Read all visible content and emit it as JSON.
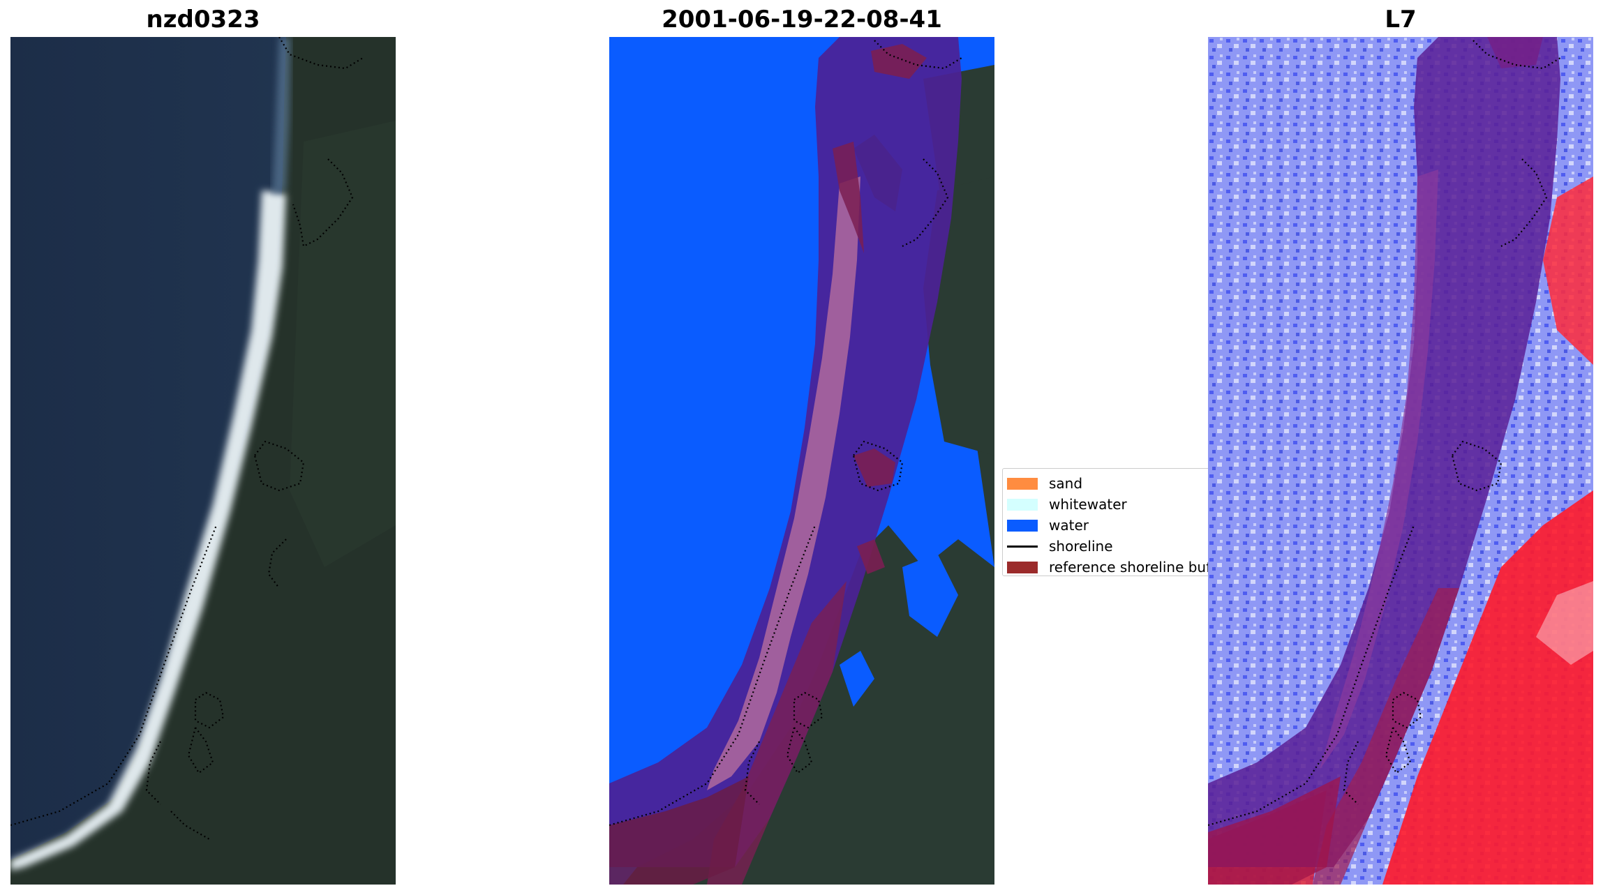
{
  "panels": [
    {
      "title": "nzd0323"
    },
    {
      "title": "2001-06-19-22-08-41"
    },
    {
      "title": "L7"
    }
  ],
  "legend": {
    "items": [
      {
        "label": "sand",
        "color": "#ff8c40",
        "kind": "patch"
      },
      {
        "label": "whitewater",
        "color": "#d4ffff",
        "kind": "patch"
      },
      {
        "label": "water",
        "color": "#0a5cff",
        "kind": "patch"
      },
      {
        "label": "shoreline",
        "color": "#000000",
        "kind": "line"
      },
      {
        "label": "reference shoreline buffer",
        "color": "#9b2b2b",
        "kind": "patch"
      }
    ]
  },
  "colors": {
    "ocean_dark": "#1f3350",
    "forest": "#243128",
    "beach": "#e6eef0",
    "classified_water": "#0a5cff",
    "buffer_overlay": "#6f1e6e",
    "index_blue": "#3344ee",
    "index_red": "#ff1a2a"
  }
}
